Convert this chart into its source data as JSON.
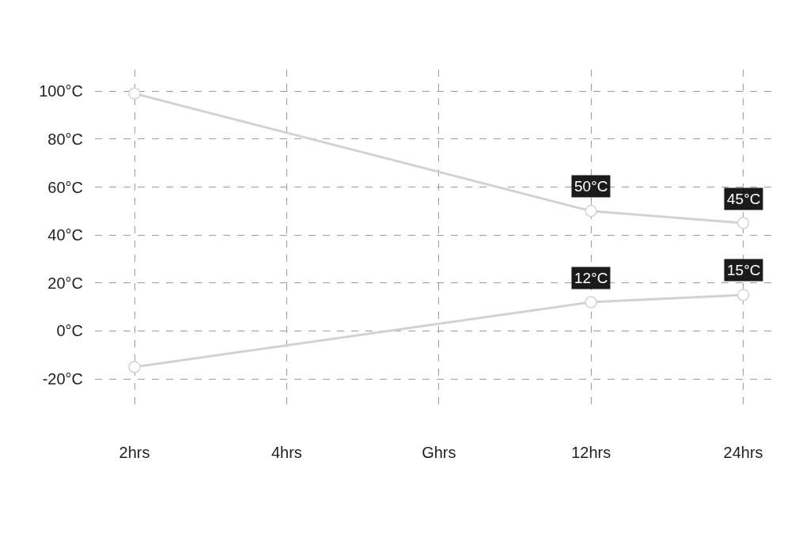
{
  "chart_data": {
    "type": "line",
    "categories": [
      "2hrs",
      "4hrs",
      "Ghrs",
      "12hrs",
      "24hrs"
    ],
    "ylim": [
      -33.5,
      109
    ],
    "yticks": [
      {
        "value": -20,
        "label": "-20°C"
      },
      {
        "value": 0,
        "label": "0°C"
      },
      {
        "value": 20,
        "label": "20°C"
      },
      {
        "value": 40,
        "label": "40°C"
      },
      {
        "value": 60,
        "label": "60°C"
      },
      {
        "value": 80,
        "label": "80°C"
      },
      {
        "value": 100,
        "label": "100°C"
      }
    ],
    "grid": true,
    "marker": "circle",
    "line_style": "solid",
    "series": [
      {
        "color": "#d2d2d2",
        "values": [
          99,
          null,
          null,
          50,
          45
        ],
        "value_labels": [
          null,
          null,
          null,
          "50°C",
          "45°C"
        ]
      },
      {
        "color": "#d2d2d2",
        "values": [
          -15,
          null,
          null,
          12,
          15
        ],
        "value_labels": [
          null,
          null,
          null,
          "12°C",
          "15°C"
        ]
      }
    ]
  }
}
